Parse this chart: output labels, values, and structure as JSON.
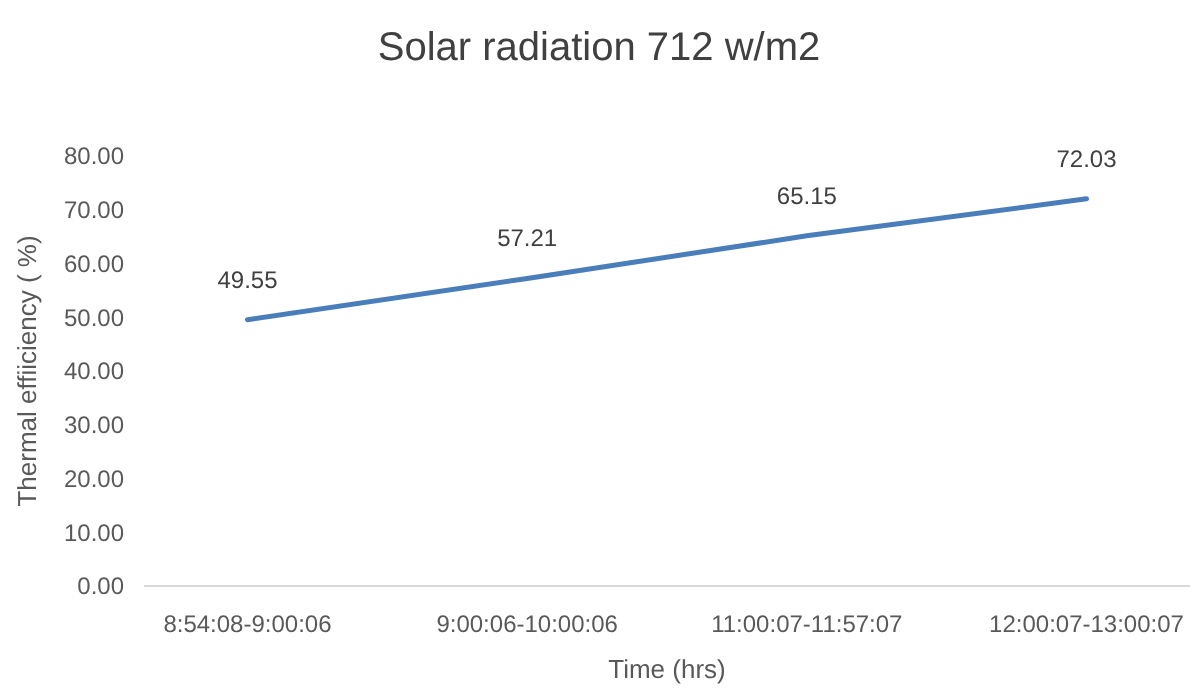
{
  "chart_data": {
    "type": "line",
    "title": "Solar radiation 712 w/m2",
    "xlabel": "Time (hrs)",
    "ylabel": "Thermal effiiciency ( %)",
    "categories": [
      "8:54:08-9:00:06",
      "9:00:06-10:00:06",
      "11:00:07-11:57:07",
      "12:00:07-13:00:07"
    ],
    "series": [
      {
        "color": "#4a7ebb",
        "values": [
          49.55,
          57.21,
          65.15,
          72.03
        ]
      }
    ],
    "ylim": [
      0,
      80
    ],
    "yticks": [
      {
        "value": 0,
        "label": "0.00"
      },
      {
        "value": 10,
        "label": "10.00"
      },
      {
        "value": 20,
        "label": "20.00"
      },
      {
        "value": 30,
        "label": "30.00"
      },
      {
        "value": 40,
        "label": "40.00"
      },
      {
        "value": 50,
        "label": "50.00"
      },
      {
        "value": 60,
        "label": "60.00"
      },
      {
        "value": 70,
        "label": "70.00"
      },
      {
        "value": 80,
        "label": "80.00"
      }
    ],
    "grid": false,
    "marker": "none",
    "line_style": "solid",
    "data_labels": true
  }
}
